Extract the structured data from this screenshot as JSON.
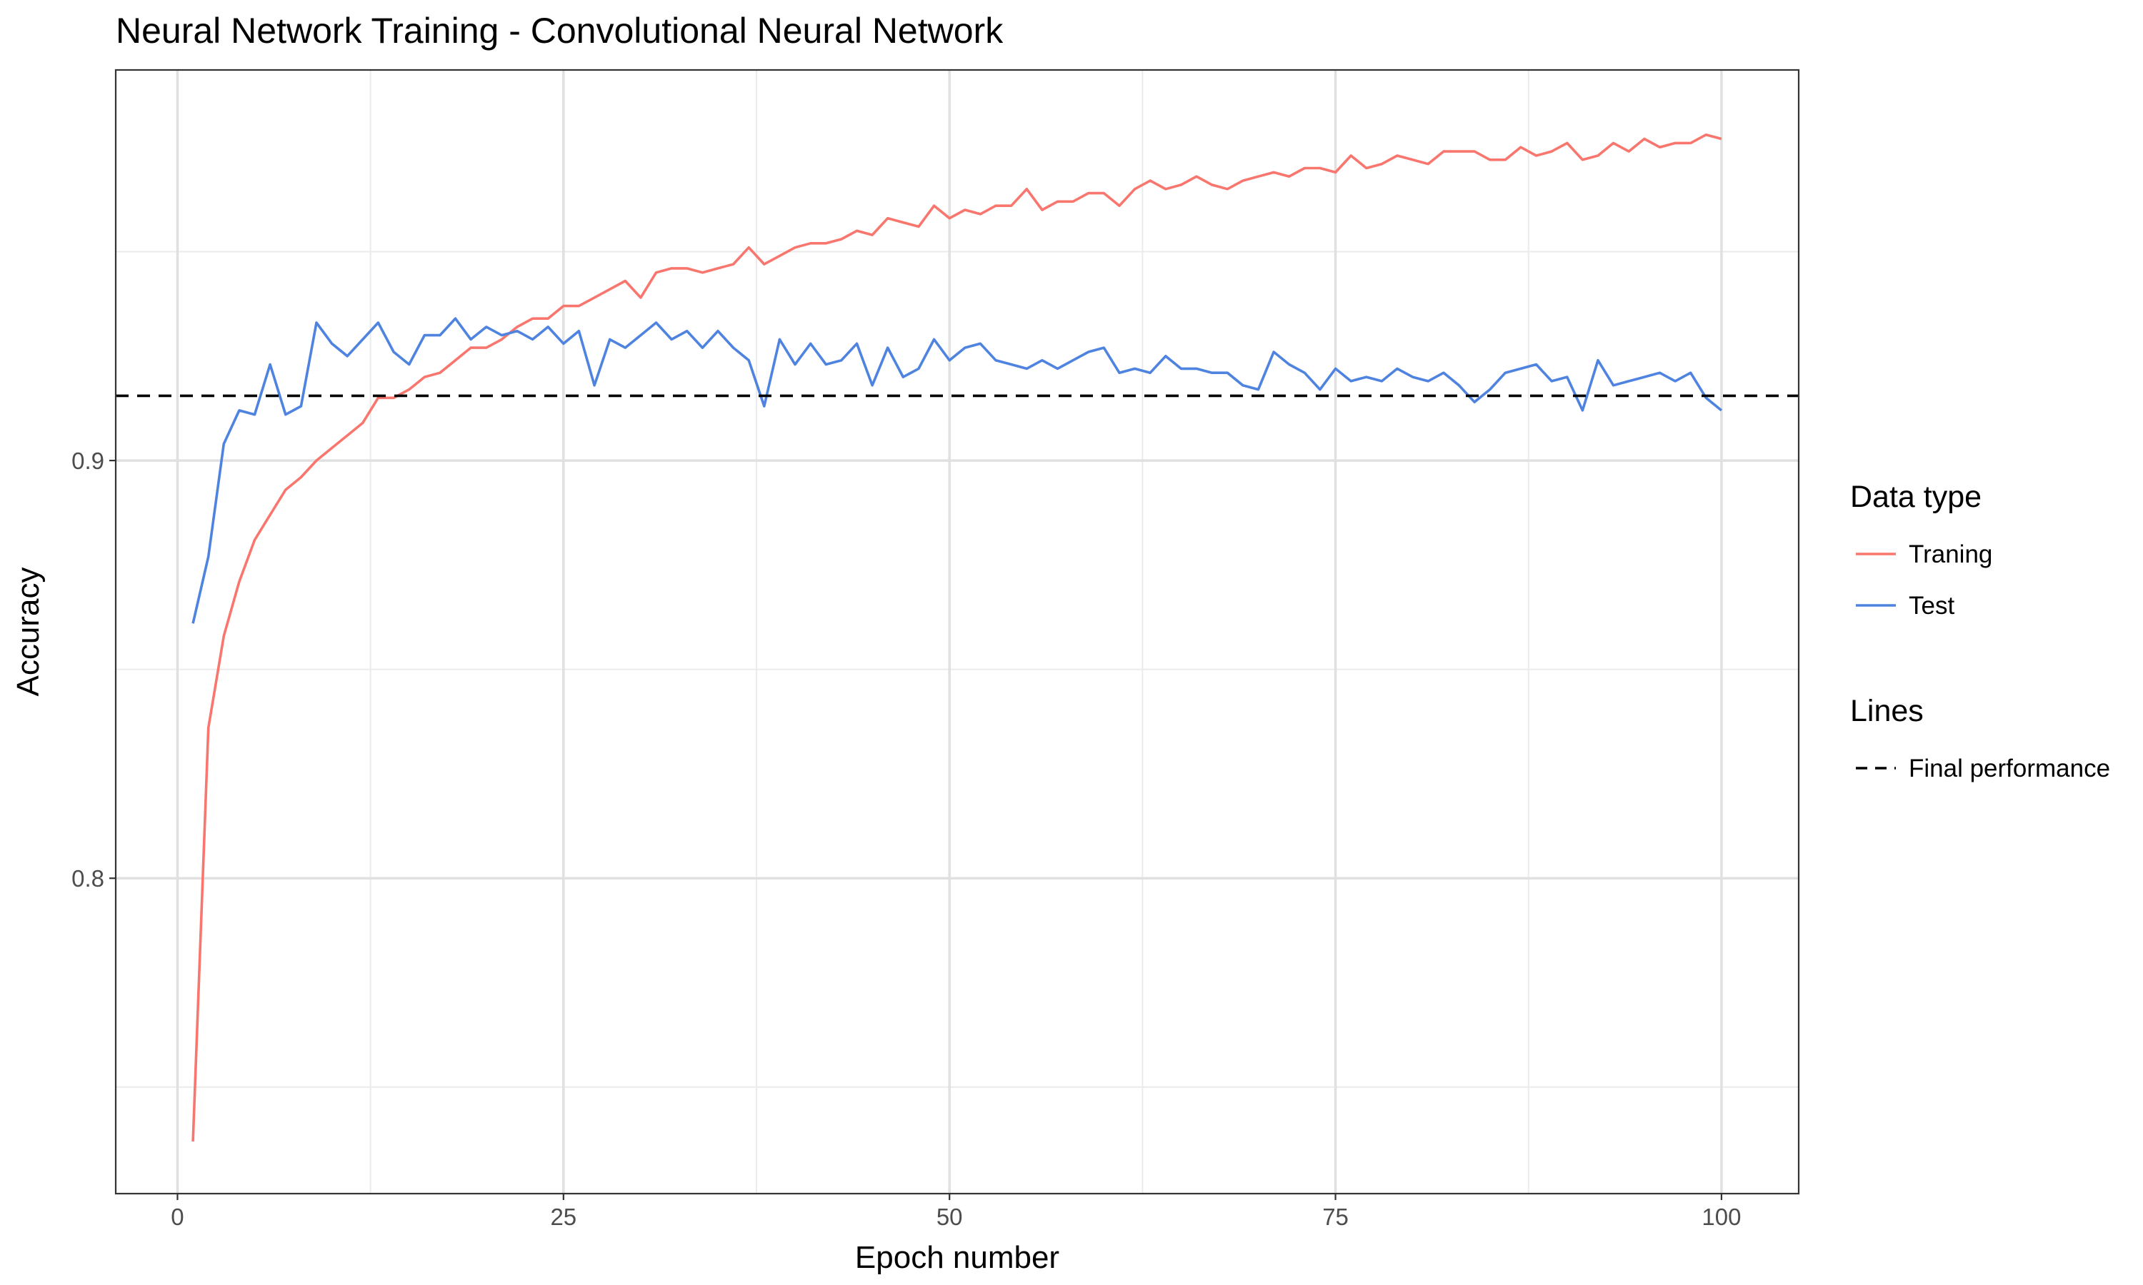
{
  "chart_data": {
    "type": "line",
    "title": "Neural Network Training - Convolutional Neural Network",
    "xlabel": "Epoch number",
    "ylabel": "Accuracy",
    "xlim": [
      -4,
      105
    ],
    "ylim": [
      0.7245,
      0.9935
    ],
    "x_ticks": [
      0,
      25,
      50,
      75,
      100
    ],
    "x_tick_labels": [
      "0",
      "25",
      "50",
      "75",
      "100"
    ],
    "x_minor_ticks": [
      12.5,
      37.5,
      62.5,
      87.5
    ],
    "y_ticks": [
      0.8,
      0.9
    ],
    "y_tick_labels": [
      "0.8",
      "0.9"
    ],
    "y_minor_ticks": [
      0.75,
      0.85,
      0.95
    ],
    "grid": true,
    "legend_position": "right",
    "colors": {
      "Traning": "#f8766d",
      "Test": "#4f83e0",
      "Final performance": "#000000"
    },
    "legend_groups": [
      {
        "title": "Data type",
        "items": [
          {
            "label": "Traning",
            "style": "solid",
            "color": "#f8766d"
          },
          {
            "label": "Test",
            "style": "solid",
            "color": "#4f83e0"
          }
        ]
      },
      {
        "title": "Lines",
        "items": [
          {
            "label": "Final performance",
            "style": "dashed",
            "color": "#000000"
          }
        ]
      }
    ],
    "x": [
      1,
      2,
      3,
      4,
      5,
      6,
      7,
      8,
      9,
      10,
      11,
      12,
      13,
      14,
      15,
      16,
      17,
      18,
      19,
      20,
      21,
      22,
      23,
      24,
      25,
      26,
      27,
      28,
      29,
      30,
      31,
      32,
      33,
      34,
      35,
      36,
      37,
      38,
      39,
      40,
      41,
      42,
      43,
      44,
      45,
      46,
      47,
      48,
      49,
      50,
      51,
      52,
      53,
      54,
      55,
      56,
      57,
      58,
      59,
      60,
      61,
      62,
      63,
      64,
      65,
      66,
      67,
      68,
      69,
      70,
      71,
      72,
      73,
      74,
      75,
      76,
      77,
      78,
      79,
      80,
      81,
      82,
      83,
      84,
      85,
      86,
      87,
      88,
      89,
      90,
      91,
      92,
      93,
      94,
      95,
      96,
      97,
      98,
      99,
      100
    ],
    "series": [
      {
        "name": "Traning",
        "values": [
          0.737,
          0.836,
          0.858,
          0.871,
          0.881,
          0.887,
          0.893,
          0.896,
          0.9,
          0.903,
          0.906,
          0.909,
          0.915,
          0.915,
          0.917,
          0.92,
          0.921,
          0.924,
          0.927,
          0.927,
          0.929,
          0.932,
          0.934,
          0.934,
          0.937,
          0.937,
          0.939,
          0.941,
          0.943,
          0.939,
          0.945,
          0.946,
          0.946,
          0.945,
          0.946,
          0.947,
          0.951,
          0.947,
          0.949,
          0.951,
          0.952,
          0.952,
          0.953,
          0.955,
          0.954,
          0.958,
          0.957,
          0.956,
          0.961,
          0.958,
          0.96,
          0.959,
          0.961,
          0.961,
          0.965,
          0.96,
          0.962,
          0.962,
          0.964,
          0.964,
          0.961,
          0.965,
          0.967,
          0.965,
          0.966,
          0.968,
          0.966,
          0.965,
          0.967,
          0.968,
          0.969,
          0.968,
          0.97,
          0.97,
          0.969,
          0.973,
          0.97,
          0.971,
          0.973,
          0.972,
          0.971,
          0.974,
          0.974,
          0.974,
          0.972,
          0.972,
          0.975,
          0.973,
          0.974,
          0.976,
          0.972,
          0.973,
          0.976,
          0.974,
          0.977,
          0.975,
          0.976,
          0.976,
          0.978,
          0.977
        ]
      },
      {
        "name": "Test",
        "values": [
          0.861,
          0.877,
          0.904,
          0.912,
          0.911,
          0.923,
          0.911,
          0.913,
          0.933,
          0.928,
          0.925,
          0.929,
          0.933,
          0.926,
          0.923,
          0.93,
          0.93,
          0.934,
          0.929,
          0.932,
          0.93,
          0.931,
          0.929,
          0.932,
          0.928,
          0.931,
          0.918,
          0.929,
          0.927,
          0.93,
          0.933,
          0.929,
          0.931,
          0.927,
          0.931,
          0.927,
          0.924,
          0.913,
          0.929,
          0.923,
          0.928,
          0.923,
          0.924,
          0.928,
          0.918,
          0.927,
          0.92,
          0.922,
          0.929,
          0.924,
          0.927,
          0.928,
          0.924,
          0.923,
          0.922,
          0.924,
          0.922,
          0.924,
          0.926,
          0.927,
          0.921,
          0.922,
          0.921,
          0.925,
          0.922,
          0.922,
          0.921,
          0.921,
          0.918,
          0.917,
          0.926,
          0.923,
          0.921,
          0.917,
          0.922,
          0.919,
          0.92,
          0.919,
          0.922,
          0.92,
          0.919,
          0.921,
          0.918,
          0.914,
          0.917,
          0.921,
          0.922,
          0.923,
          0.919,
          0.92,
          0.912,
          0.924,
          0.918,
          0.919,
          0.92,
          0.921,
          0.919,
          0.921,
          0.915,
          0.912
        ]
      }
    ],
    "hlines": [
      {
        "name": "Final performance",
        "y": 0.9155,
        "style": "dashed"
      }
    ]
  }
}
